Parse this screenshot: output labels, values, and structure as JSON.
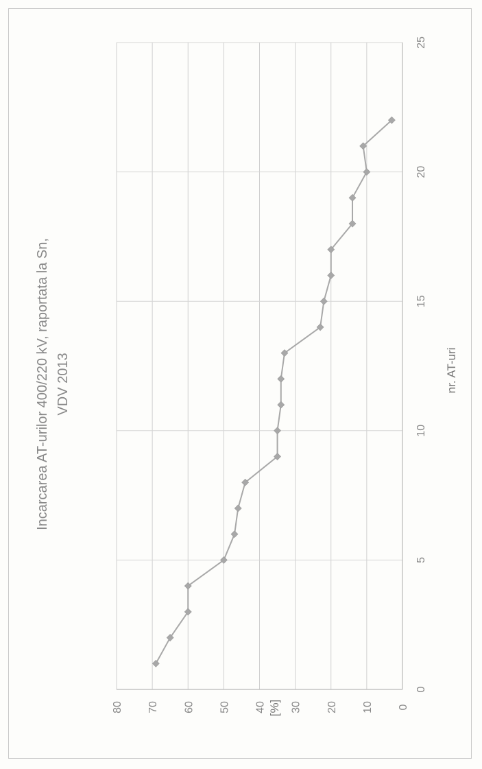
{
  "chart_data": {
    "type": "line",
    "title": "Incarcarea AT-urilor 400/220 kV, raportata la Sn,",
    "subtitle": "VDV 2013",
    "xlabel": "nr. AT-uri",
    "ylabel": "[%]",
    "xlim": [
      0,
      25
    ],
    "ylim": [
      0,
      80
    ],
    "x_ticks": [
      "0",
      "5",
      "10",
      "15",
      "20",
      "25"
    ],
    "y_ticks": [
      "0",
      "10",
      "20",
      "30",
      "40",
      "50",
      "60",
      "70",
      "80"
    ],
    "grid": true,
    "series": [
      {
        "x": [
          1,
          2,
          3,
          4,
          5,
          6,
          7,
          8,
          9,
          10,
          11,
          12,
          13,
          14,
          15,
          16,
          17,
          18,
          19,
          20,
          21,
          22
        ],
        "values": [
          69,
          65,
          60,
          60,
          50,
          47,
          46,
          44,
          35,
          35,
          34,
          34,
          33,
          23,
          22,
          20,
          20,
          14,
          14,
          10,
          11,
          3
        ],
        "color": "#a8a8a8"
      }
    ]
  }
}
